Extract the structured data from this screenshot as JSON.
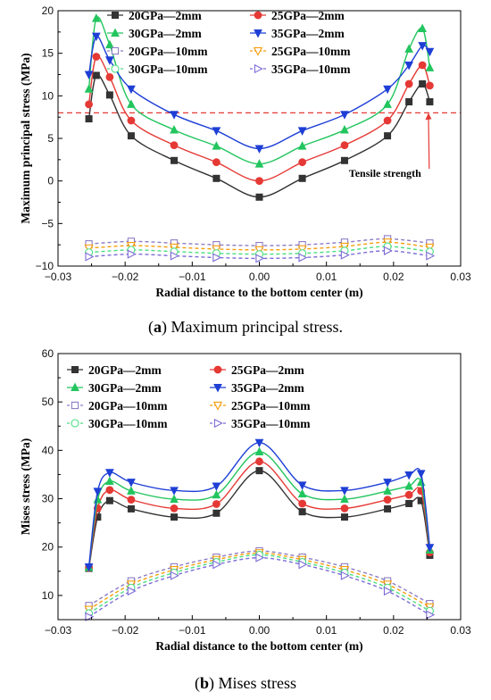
{
  "caption_a": {
    "letter": "a",
    "text": "Maximum principal stress."
  },
  "caption_b": {
    "letter": "b",
    "text": "Mises stress"
  },
  "chart_data": [
    {
      "type": "line",
      "xlabel": "Radial distance to the  bottom center (m)",
      "ylabel": "Maximum principal stress (MPa)",
      "xlim": [
        -0.03,
        0.03
      ],
      "ylim": [
        -10,
        20
      ],
      "xticks": [
        "−0.03",
        "−0.02",
        "−0.01",
        "0.00",
        "0.01",
        "0.02",
        "0.03"
      ],
      "yticks": [
        "−10",
        "−5",
        "0",
        "5",
        "10",
        "15",
        "20"
      ],
      "legend_position": "top",
      "reference_line": {
        "y": 8,
        "color": "#e53935",
        "style": "dashed"
      },
      "annotation": {
        "text": "Tensile strength",
        "x": 0.018,
        "y": 0.9,
        "arrow_to": [
          0.0252,
          8
        ]
      },
      "series": [
        {
          "name": "20GPa—2mm",
          "color": "#333333",
          "marker": "square-filled",
          "x": [
            -0.0254,
            -0.0243,
            -0.0223,
            -0.0191,
            -0.0127,
            -0.0064,
            0.0,
            0.0064,
            0.0127,
            0.0191,
            0.0223,
            0.0243,
            0.0254
          ],
          "y": [
            7.3,
            12.4,
            10.1,
            5.3,
            2.4,
            0.3,
            -1.9,
            0.3,
            2.4,
            5.3,
            9.3,
            11.4,
            9.3
          ]
        },
        {
          "name": "25GPa—2mm",
          "color": "#e53935",
          "marker": "circle-filled",
          "x": [
            -0.0254,
            -0.0243,
            -0.0223,
            -0.0191,
            -0.0127,
            -0.0064,
            0.0,
            0.0064,
            0.0127,
            0.0191,
            0.0223,
            0.0243,
            0.0254
          ],
          "y": [
            9.0,
            14.6,
            12.2,
            7.1,
            4.2,
            2.2,
            0.0,
            2.2,
            4.2,
            7.1,
            11.4,
            13.6,
            11.2
          ]
        },
        {
          "name": "30GPa—2mm",
          "color": "#22c55e",
          "marker": "triangle-up-filled",
          "x": [
            -0.0254,
            -0.0243,
            -0.0223,
            -0.0191,
            -0.0127,
            -0.0064,
            0.0,
            0.0064,
            0.0127,
            0.0191,
            0.0223,
            0.0243,
            0.0254
          ],
          "y": [
            10.8,
            19.1,
            16.0,
            9.0,
            6.0,
            4.1,
            2.0,
            4.1,
            6.0,
            9.0,
            15.5,
            17.9,
            13.3
          ]
        },
        {
          "name": "35GPa—2mm",
          "color": "#1e3fd6",
          "marker": "triangle-down-filled",
          "x": [
            -0.0254,
            -0.0243,
            -0.0223,
            -0.0191,
            -0.0127,
            -0.0064,
            0.0,
            0.0064,
            0.0127,
            0.0191,
            0.0223,
            0.0243,
            0.0254
          ],
          "y": [
            12.5,
            17.0,
            14.2,
            10.8,
            7.8,
            5.9,
            3.8,
            5.9,
            7.8,
            10.8,
            13.6,
            15.9,
            15.2
          ]
        },
        {
          "name": "20GPa—10mm",
          "color": "#8e7cc3",
          "marker": "square-open",
          "x": [
            -0.0254,
            -0.0191,
            -0.0127,
            -0.0064,
            0.0,
            0.0064,
            0.0127,
            0.0191,
            0.0254
          ],
          "y": [
            -7.4,
            -7.1,
            -7.3,
            -7.5,
            -7.6,
            -7.5,
            -7.2,
            -6.8,
            -7.3
          ]
        },
        {
          "name": "25GPa—10mm",
          "color": "#f59e0b",
          "marker": "triangle-down-open",
          "x": [
            -0.0254,
            -0.0191,
            -0.0127,
            -0.0064,
            0.0,
            0.0064,
            0.0127,
            0.0191,
            0.0254
          ],
          "y": [
            -7.9,
            -7.6,
            -7.8,
            -8.0,
            -8.1,
            -8.0,
            -7.7,
            -7.2,
            -7.8
          ]
        },
        {
          "name": "30GPa—10mm",
          "color": "#4ade80",
          "marker": "circle-open",
          "x": [
            -0.0254,
            -0.0191,
            -0.0127,
            -0.0064,
            0.0,
            0.0064,
            0.0127,
            0.0191,
            0.0254
          ],
          "y": [
            -8.4,
            -8.1,
            -8.3,
            -8.5,
            -8.6,
            -8.5,
            -8.2,
            -7.7,
            -8.3
          ]
        },
        {
          "name": "35GPa—10mm",
          "color": "#7c6cd6",
          "marker": "triangle-right-open",
          "x": [
            -0.0254,
            -0.0191,
            -0.0127,
            -0.0064,
            0.0,
            0.0064,
            0.0127,
            0.0191,
            0.0254
          ],
          "y": [
            -8.9,
            -8.6,
            -8.8,
            -9.0,
            -9.1,
            -9.0,
            -8.7,
            -8.2,
            -8.8
          ]
        }
      ]
    },
    {
      "type": "line",
      "xlabel": "Radial distance to the  bottom center (m)",
      "ylabel": "Mises stress (MPa)",
      "xlim": [
        -0.03,
        0.03
      ],
      "ylim": [
        5,
        60
      ],
      "xticks": [
        "−0.03",
        "−0.02",
        "−0.01",
        "0.00",
        "0.01",
        "0.02",
        "0.03"
      ],
      "yticks": [
        "10",
        "20",
        "30",
        "40",
        "50",
        "60"
      ],
      "legend_position": "top-left",
      "series": [
        {
          "name": "20GPa—2mm",
          "color": "#333333",
          "marker": "square-filled",
          "x": [
            -0.0254,
            -0.0241,
            -0.0223,
            -0.0191,
            -0.0127,
            -0.0064,
            0.0,
            0.0064,
            0.0127,
            0.0191,
            0.0223,
            0.0241,
            0.0254
          ],
          "y": [
            15.6,
            26.2,
            29.6,
            27.9,
            26.2,
            27.0,
            35.8,
            27.3,
            26.2,
            27.9,
            29.0,
            29.6,
            18.3
          ]
        },
        {
          "name": "25GPa—2mm",
          "color": "#e53935",
          "marker": "circle-filled",
          "x": [
            -0.0254,
            -0.0241,
            -0.0223,
            -0.0191,
            -0.0127,
            -0.0064,
            0.0,
            0.0064,
            0.0127,
            0.0191,
            0.0223,
            0.0241,
            0.0254
          ],
          "y": [
            15.7,
            28.0,
            31.8,
            29.8,
            28.0,
            28.9,
            37.7,
            29.0,
            28.0,
            29.8,
            30.8,
            31.6,
            18.9
          ]
        },
        {
          "name": "30GPa—2mm",
          "color": "#22c55e",
          "marker": "triangle-up-filled",
          "x": [
            -0.0254,
            -0.0241,
            -0.0223,
            -0.0191,
            -0.0127,
            -0.0064,
            0.0,
            0.0064,
            0.0127,
            0.0191,
            0.0223,
            0.0241,
            0.0254
          ],
          "y": [
            15.8,
            29.8,
            33.6,
            31.6,
            29.9,
            30.8,
            39.7,
            31.0,
            29.9,
            31.6,
            32.6,
            33.4,
            19.4
          ]
        },
        {
          "name": "35GPa—2mm",
          "color": "#1e3fd6",
          "marker": "triangle-down-filled",
          "x": [
            -0.0254,
            -0.0241,
            -0.0223,
            -0.0191,
            -0.0127,
            -0.0064,
            0.0,
            0.0064,
            0.0127,
            0.0191,
            0.0223,
            0.0241,
            0.0254
          ],
          "y": [
            15.9,
            31.5,
            35.4,
            33.4,
            31.7,
            32.6,
            41.6,
            32.8,
            31.7,
            33.4,
            34.9,
            35.2,
            19.9
          ]
        },
        {
          "name": "20GPa—10mm",
          "color": "#8e7cc3",
          "marker": "square-open",
          "x": [
            -0.0254,
            -0.0191,
            -0.0127,
            -0.0064,
            0.0,
            0.0064,
            0.0127,
            0.0191,
            0.0254
          ],
          "y": [
            7.9,
            13.0,
            15.9,
            17.9,
            19.2,
            17.9,
            15.9,
            13.0,
            8.3
          ]
        },
        {
          "name": "25GPa—10mm",
          "color": "#f59e0b",
          "marker": "triangle-down-open",
          "x": [
            -0.0254,
            -0.0191,
            -0.0127,
            -0.0064,
            0.0,
            0.0064,
            0.0127,
            0.0191,
            0.0254
          ],
          "y": [
            7.1,
            12.3,
            15.3,
            17.4,
            18.8,
            17.4,
            15.3,
            12.3,
            7.6
          ]
        },
        {
          "name": "30GPa—10mm",
          "color": "#4ade80",
          "marker": "circle-open",
          "x": [
            -0.0254,
            -0.0191,
            -0.0127,
            -0.0064,
            0.0,
            0.0064,
            0.0127,
            0.0191,
            0.0254
          ],
          "y": [
            6.3,
            11.6,
            14.7,
            16.9,
            18.4,
            16.9,
            14.7,
            11.6,
            6.8
          ]
        },
        {
          "name": "35GPa—10mm",
          "color": "#7c6cd6",
          "marker": "triangle-right-open",
          "x": [
            -0.0254,
            -0.0191,
            -0.0127,
            -0.0064,
            0.0,
            0.0064,
            0.0127,
            0.0191,
            0.0254
          ],
          "y": [
            5.6,
            10.9,
            14.1,
            16.4,
            17.8,
            16.4,
            14.1,
            10.9,
            6.0
          ]
        }
      ]
    }
  ]
}
